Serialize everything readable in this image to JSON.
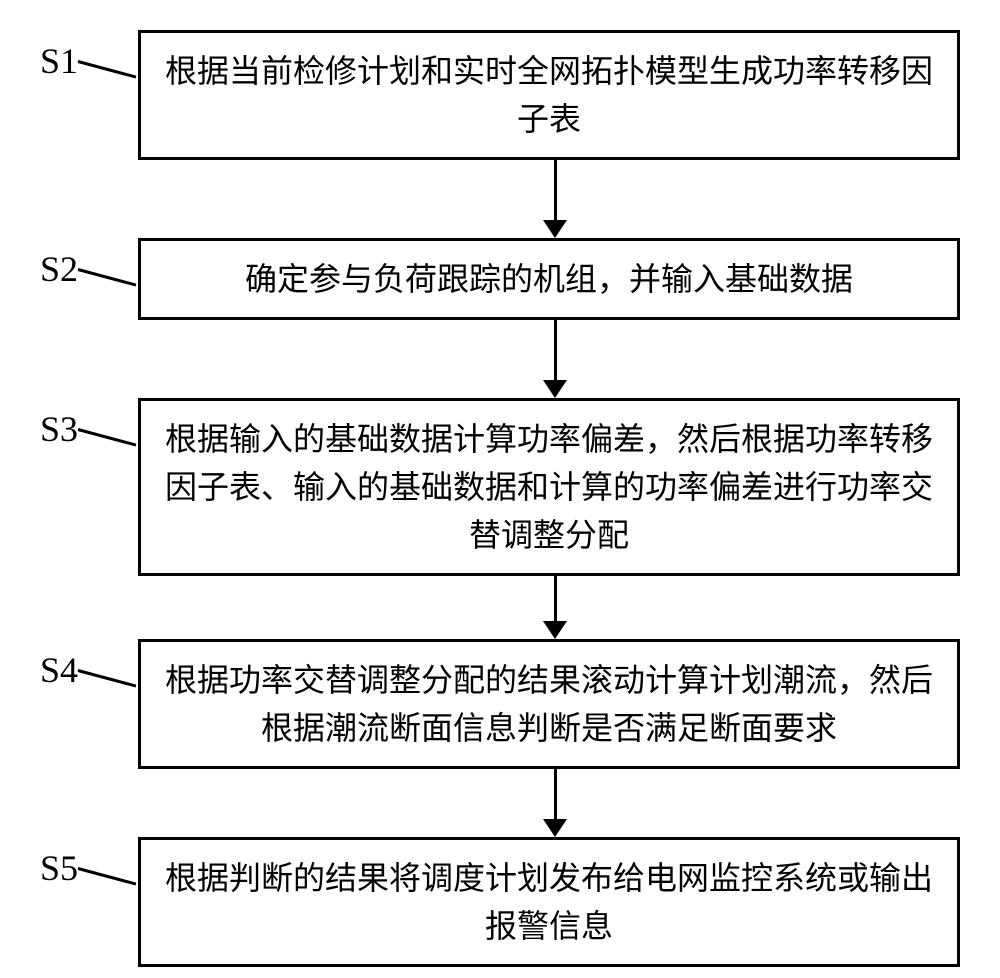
{
  "flowchart": {
    "type": "flowchart",
    "direction": "vertical",
    "background_color": "#ffffff",
    "border_color": "#000000",
    "border_width": 3,
    "text_color": "#000000",
    "font_family": "SimSun",
    "label_fontsize": 36,
    "box_fontsize": 32,
    "arrow_color": "#000000",
    "steps": [
      {
        "label": "S1",
        "text": "根据当前检修计划和实时全网拓扑模型生成功率转移因子表"
      },
      {
        "label": "S2",
        "text": "确定参与负荷跟踪的机组，并输入基础数据"
      },
      {
        "label": "S3",
        "text": "根据输入的基础数据计算功率偏差，然后根据功率转移因子表、输入的基础数据和计算的功率偏差进行功率交替调整分配"
      },
      {
        "label": "S4",
        "text": "根据功率交替调整分配的结果滚动计算计划潮流，然后根据潮流断面信息判断是否满足断面要求"
      },
      {
        "label": "S5",
        "text": "根据判断的结果将调度计划发布给电网监控系统或输出报警信息"
      }
    ],
    "edges": [
      {
        "from": 0,
        "to": 1
      },
      {
        "from": 1,
        "to": 2
      },
      {
        "from": 2,
        "to": 3
      },
      {
        "from": 3,
        "to": 4
      }
    ]
  }
}
